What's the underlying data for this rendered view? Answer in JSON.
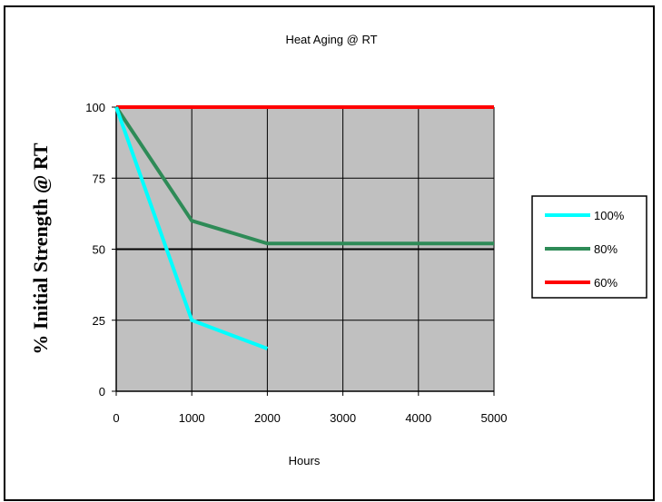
{
  "chart_data": {
    "type": "line",
    "title": "Heat Aging @ RT",
    "xlabel": "Hours",
    "ylabel": "% Initial Strength @ RT",
    "categories": [
      "0",
      "1000",
      "2000",
      "3000",
      "4000",
      "5000"
    ],
    "yticks": [
      "0",
      "25",
      "50",
      "75",
      "100"
    ],
    "ylim": [
      0,
      100
    ],
    "grid": true,
    "legend": "right",
    "plot_background": "#c0c0c0",
    "series": [
      {
        "name": "100%",
        "color": "#00ffff",
        "values": [
          100,
          25,
          15,
          null,
          null,
          null
        ]
      },
      {
        "name": "80%",
        "color": "#2e8b57",
        "values": [
          100,
          60,
          52,
          52,
          52,
          52
        ]
      },
      {
        "name": "60%",
        "color": "#ff0000",
        "values": [
          100,
          100,
          100,
          100,
          100,
          100
        ]
      }
    ]
  }
}
